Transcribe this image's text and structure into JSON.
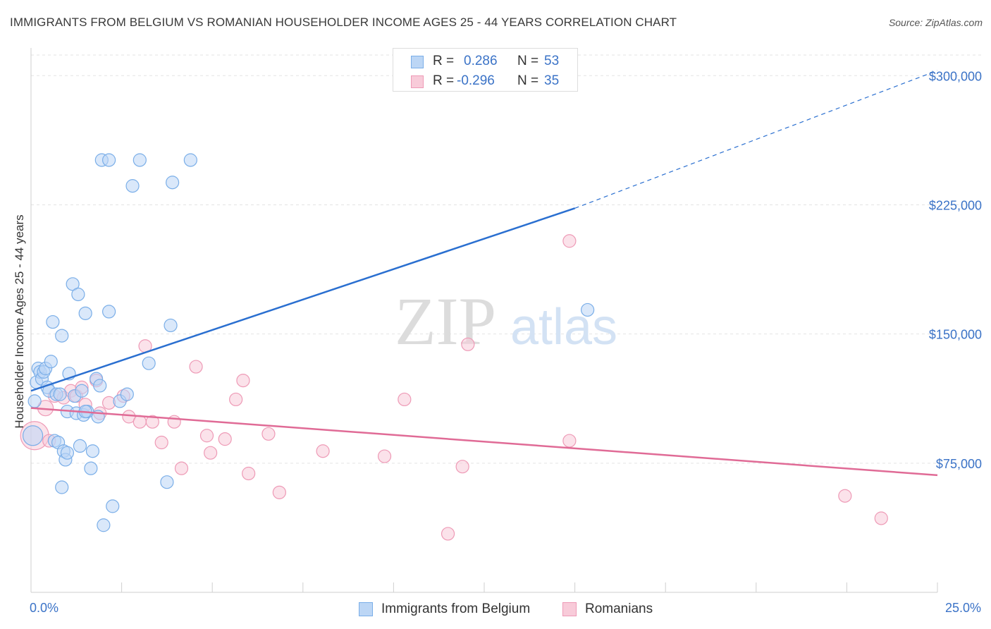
{
  "header": {
    "title": "IMMIGRANTS FROM BELGIUM VS ROMANIAN HOUSEHOLDER INCOME AGES 25 - 44 YEARS CORRELATION CHART",
    "source": "Source: ZipAtlas.com"
  },
  "legend": {
    "rows": [
      {
        "r_label": "R =",
        "r_value": "0.286",
        "n_label": "N =",
        "n_value": "53"
      },
      {
        "r_label": "R =",
        "r_value": "-0.296",
        "n_label": "N =",
        "n_value": "35"
      }
    ]
  },
  "bottom_legend": {
    "series1": "Immigrants from Belgium",
    "series2": "Romanians"
  },
  "colors": {
    "blue_stroke": "#7aaee8",
    "blue_fill": "#bcd6f5",
    "blue_line": "#2a6fd0",
    "pink_stroke": "#ee9ab6",
    "pink_fill": "#f8cbd9",
    "pink_line": "#e06b96",
    "axis_text": "#3b73c7",
    "grid": "#e3e3e3"
  },
  "watermark": {
    "zip": "ZIP",
    "atlas": "atlas"
  },
  "chart_data": {
    "type": "scatter",
    "title": "IMMIGRANTS FROM BELGIUM VS ROMANIAN HOUSEHOLDER INCOME AGES 25 - 44 YEARS CORRELATION CHART",
    "xlabel": "",
    "ylabel": "Householder Income Ages 25 - 44 years",
    "xlim": [
      0,
      25
    ],
    "ylim": [
      0,
      312000
    ],
    "x_tick_labels": {
      "min": "0.0%",
      "max": "25.0%"
    },
    "y_ticks": [
      75000,
      150000,
      225000,
      300000
    ],
    "y_tick_labels": [
      "$75,000",
      "$150,000",
      "$225,000",
      "$300,000"
    ],
    "grid": true,
    "series": [
      {
        "name": "Immigrants from Belgium",
        "r": 0.286,
        "n": 53,
        "trend": {
          "x0": 0.0,
          "y0": 117000,
          "x1": 15.0,
          "y1": 223000,
          "dashed_to_x": 25.0,
          "dashed_to_y": 303000
        },
        "points": [
          {
            "x": 0.05,
            "y": 91000,
            "s": 14
          },
          {
            "x": 0.1,
            "y": 111000
          },
          {
            "x": 0.15,
            "y": 122000
          },
          {
            "x": 0.2,
            "y": 130000
          },
          {
            "x": 0.25,
            "y": 128000
          },
          {
            "x": 0.3,
            "y": 124000
          },
          {
            "x": 0.35,
            "y": 128000
          },
          {
            "x": 0.4,
            "y": 130000
          },
          {
            "x": 0.45,
            "y": 120000
          },
          {
            "x": 0.5,
            "y": 119000
          },
          {
            "x": 0.5,
            "y": 126000
          },
          {
            "x": 0.55,
            "y": 134000
          },
          {
            "x": 0.6,
            "y": 117000
          },
          {
            "x": 0.65,
            "y": 88000
          },
          {
            "x": 0.6,
            "y": 157000
          },
          {
            "x": 0.7,
            "y": 115000
          },
          {
            "x": 0.75,
            "y": 87000
          },
          {
            "x": 0.8,
            "y": 115000
          },
          {
            "x": 0.85,
            "y": 149000
          },
          {
            "x": 0.85,
            "y": 61000
          },
          {
            "x": 0.9,
            "y": 82000
          },
          {
            "x": 0.95,
            "y": 77000
          },
          {
            "x": 1.0,
            "y": 81000
          },
          {
            "x": 1.0,
            "y": 105000
          },
          {
            "x": 1.05,
            "y": 127000
          },
          {
            "x": 1.0,
            "y": 104000
          },
          {
            "x": 1.15,
            "y": 179000
          },
          {
            "x": 1.2,
            "y": 114000
          },
          {
            "x": 1.25,
            "y": 104000
          },
          {
            "x": 1.3,
            "y": 173000
          },
          {
            "x": 1.35,
            "y": 85000
          },
          {
            "x": 1.35,
            "y": 124000
          },
          {
            "x": 1.4,
            "y": 117000
          },
          {
            "x": 1.45,
            "y": 103000
          },
          {
            "x": 1.5,
            "y": 104000
          },
          {
            "x": 1.5,
            "y": 104000
          },
          {
            "x": 1.5,
            "y": 104000
          },
          {
            "x": 1.55,
            "y": 104000
          },
          {
            "x": 1.55,
            "y": 104000
          },
          {
            "x": 1.6,
            "y": 104000
          },
          {
            "x": 1.65,
            "y": 104000
          },
          {
            "x": 1.6,
            "y": 104000
          },
          {
            "x": 1.7,
            "y": 104000
          },
          {
            "x": 1.75,
            "y": 104000
          },
          {
            "x": 1.5,
            "y": 104000
          },
          {
            "x": 1.5,
            "y": 104000
          },
          {
            "x": 1.5,
            "y": 104000
          },
          {
            "x": 1.5,
            "y": 104000
          },
          {
            "x": 1.5,
            "y": 104000
          },
          {
            "x": 1.5,
            "y": 104000
          },
          {
            "x": 1.5,
            "y": 104000
          },
          {
            "x": 1.5,
            "y": 104000
          },
          {
            "x": 1.5,
            "y": 104000
          }
        ]
      },
      {
        "name": "Romanians",
        "r": -0.296,
        "n": 35,
        "trend": {
          "x0": 0.0,
          "y0": 107000,
          "x1": 25.0,
          "y1": 68000
        },
        "points": []
      }
    ]
  }
}
